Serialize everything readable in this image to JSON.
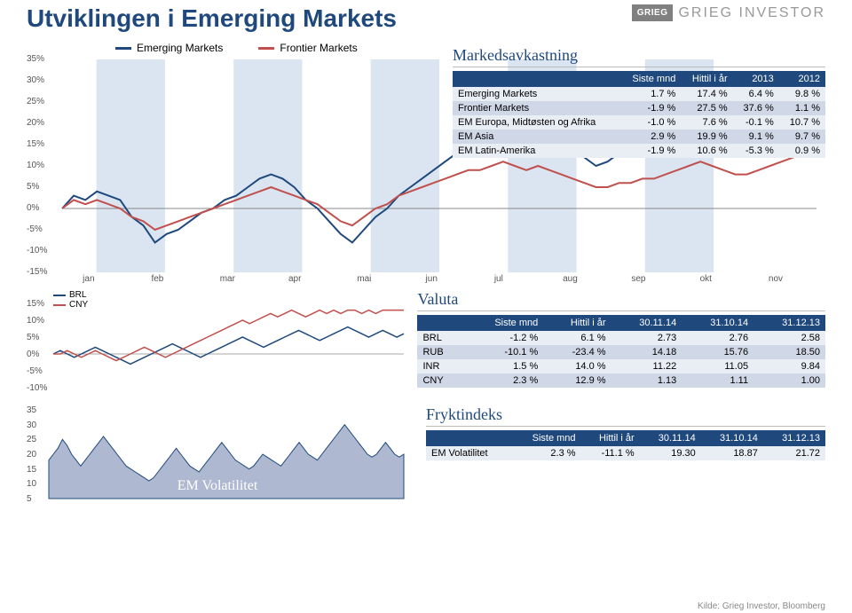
{
  "title": "Utviklingen i Emerging Markets",
  "logo": {
    "box": "GRIEG",
    "text": "GRIEG INVESTOR"
  },
  "colors": {
    "primary": "#1f497d",
    "series_em": "#c0504d",
    "series_fm": "#bf8f00",
    "band": "#dbe5f1",
    "grid": "#e0e0e0",
    "area_fill": "#aeb8d0",
    "cny": "#c0504d",
    "brl": "#1f497d"
  },
  "main_chart": {
    "legend": [
      {
        "label": "Emerging Markets",
        "color": "#1f497d"
      },
      {
        "label": "Frontier Markets",
        "color": "#c0504d"
      }
    ],
    "y_ticks": [
      "35%",
      "30%",
      "25%",
      "20%",
      "15%",
      "10%",
      "5%",
      "0%",
      "-5%",
      "-10%",
      "-15%"
    ],
    "y_min": -15,
    "y_max": 35,
    "x_labels": [
      "jan",
      "feb",
      "mar",
      "apr",
      "mai",
      "jun",
      "jul",
      "aug",
      "sep",
      "okt",
      "nov"
    ],
    "bands": [
      [
        0.5,
        1.5
      ],
      [
        2.5,
        3.5
      ],
      [
        4.5,
        5.5
      ],
      [
        6.5,
        7.5
      ],
      [
        8.5,
        9.5
      ]
    ],
    "em": [
      0,
      3,
      2,
      4,
      3,
      2,
      -2,
      -4,
      -8,
      -6,
      -5,
      -3,
      -1,
      0,
      2,
      3,
      5,
      7,
      8,
      7,
      5,
      2,
      0,
      -3,
      -6,
      -8,
      -5,
      -2,
      0,
      3,
      5,
      7,
      9,
      11,
      13,
      15,
      14,
      16,
      18,
      17,
      16,
      18,
      17,
      16,
      14,
      12,
      10,
      11,
      13,
      14,
      15,
      16,
      18,
      20,
      22,
      23,
      22,
      21,
      20,
      21,
      22,
      24,
      25,
      26,
      27,
      28
    ],
    "fm": [
      0,
      2,
      1,
      2,
      1,
      0,
      -2,
      -3,
      -5,
      -4,
      -3,
      -2,
      -1,
      0,
      1,
      2,
      3,
      4,
      5,
      4,
      3,
      2,
      1,
      -1,
      -3,
      -4,
      -2,
      0,
      1,
      3,
      4,
      5,
      6,
      7,
      8,
      9,
      9,
      10,
      11,
      10,
      9,
      10,
      9,
      8,
      7,
      6,
      5,
      5,
      6,
      6,
      7,
      7,
      8,
      9,
      10,
      11,
      10,
      9,
      8,
      8,
      9,
      10,
      11,
      12,
      13,
      14
    ]
  },
  "markedsavkastning": {
    "title": "Markedsavkastning",
    "headers": [
      "",
      "Siste mnd",
      "Hittil i år",
      "2013",
      "2012"
    ],
    "rows": [
      [
        "Emerging Markets",
        "1.7 %",
        "17.4 %",
        "6.4 %",
        "9.8 %"
      ],
      [
        "Frontier Markets",
        "-1.9 %",
        "27.5 %",
        "37.6 %",
        "1.1 %"
      ],
      [
        "EM Europa, Midtøsten og Afrika",
        "-1.0 %",
        "7.6 %",
        "-0.1 %",
        "10.7 %"
      ],
      [
        "EM Asia",
        "2.9 %",
        "19.9 %",
        "9.1 %",
        "9.7 %"
      ],
      [
        "EM Latin-Amerika",
        "-1.9 %",
        "10.6 %",
        "-5.3 %",
        "0.9 %"
      ]
    ]
  },
  "currency_chart": {
    "legend": [
      {
        "label": "BRL",
        "color": "#1f497d"
      },
      {
        "label": "CNY",
        "color": "#c0504d"
      }
    ],
    "y_ticks": [
      "15%",
      "10%",
      "5%",
      "0%",
      "-5%",
      "-10%"
    ],
    "y_min": -10,
    "y_max": 15,
    "brl": [
      0,
      1,
      0,
      -1,
      0,
      1,
      2,
      1,
      0,
      -1,
      -2,
      -3,
      -2,
      -1,
      0,
      1,
      2,
      3,
      2,
      1,
      0,
      -1,
      0,
      1,
      2,
      3,
      4,
      5,
      4,
      3,
      2,
      3,
      4,
      5,
      6,
      7,
      6,
      5,
      4,
      5,
      6,
      7,
      8,
      7,
      6,
      5,
      6,
      7,
      6,
      5,
      6
    ],
    "cny": [
      0,
      0,
      1,
      0,
      -1,
      0,
      1,
      0,
      -1,
      -2,
      -1,
      0,
      1,
      2,
      1,
      0,
      -1,
      0,
      1,
      2,
      3,
      4,
      5,
      6,
      7,
      8,
      9,
      10,
      9,
      10,
      11,
      12,
      11,
      12,
      13,
      12,
      11,
      12,
      13,
      12,
      13,
      12,
      13,
      13,
      12,
      13,
      12,
      13,
      13,
      13,
      13
    ]
  },
  "valuta": {
    "title": "Valuta",
    "headers": [
      "",
      "Siste mnd",
      "Hittil i år",
      "30.11.14",
      "31.10.14",
      "31.12.13"
    ],
    "rows": [
      [
        "BRL",
        "-1.2 %",
        "6.1 %",
        "2.73",
        "2.76",
        "2.58"
      ],
      [
        "RUB",
        "-10.1 %",
        "-23.4 %",
        "14.18",
        "15.76",
        "18.50"
      ],
      [
        "INR",
        "1.5 %",
        "14.0 %",
        "11.22",
        "11.05",
        "9.84"
      ],
      [
        "CNY",
        "2.3 %",
        "12.9 %",
        "1.13",
        "1.11",
        "1.00"
      ]
    ]
  },
  "vol_chart": {
    "y_ticks": [
      "35",
      "30",
      "25",
      "20",
      "15",
      "10",
      "5"
    ],
    "y_min": 5,
    "y_max": 35,
    "title": "EM Volatilitet",
    "data": [
      18,
      20,
      22,
      25,
      23,
      20,
      18,
      16,
      18,
      20,
      22,
      24,
      26,
      24,
      22,
      20,
      18,
      16,
      15,
      14,
      13,
      12,
      11,
      12,
      14,
      16,
      18,
      20,
      22,
      20,
      18,
      16,
      15,
      14,
      16,
      18,
      20,
      22,
      24,
      22,
      20,
      18,
      17,
      16,
      15,
      16,
      18,
      20,
      19,
      18,
      17,
      16,
      18,
      20,
      22,
      24,
      22,
      20,
      19,
      18,
      20,
      22,
      24,
      26,
      28,
      30,
      28,
      26,
      24,
      22,
      20,
      19,
      20,
      22,
      24,
      22,
      20,
      19,
      20
    ]
  },
  "fryktindeks": {
    "title": "Fryktindeks",
    "headers": [
      "",
      "Siste mnd",
      "Hittil i år",
      "30.11.14",
      "31.10.14",
      "31.12.13"
    ],
    "rows": [
      [
        "EM Volatilitet",
        "2.3 %",
        "-11.1 %",
        "19.30",
        "18.87",
        "21.72"
      ]
    ]
  },
  "source": "Kilde: Grieg Investor, Bloomberg"
}
